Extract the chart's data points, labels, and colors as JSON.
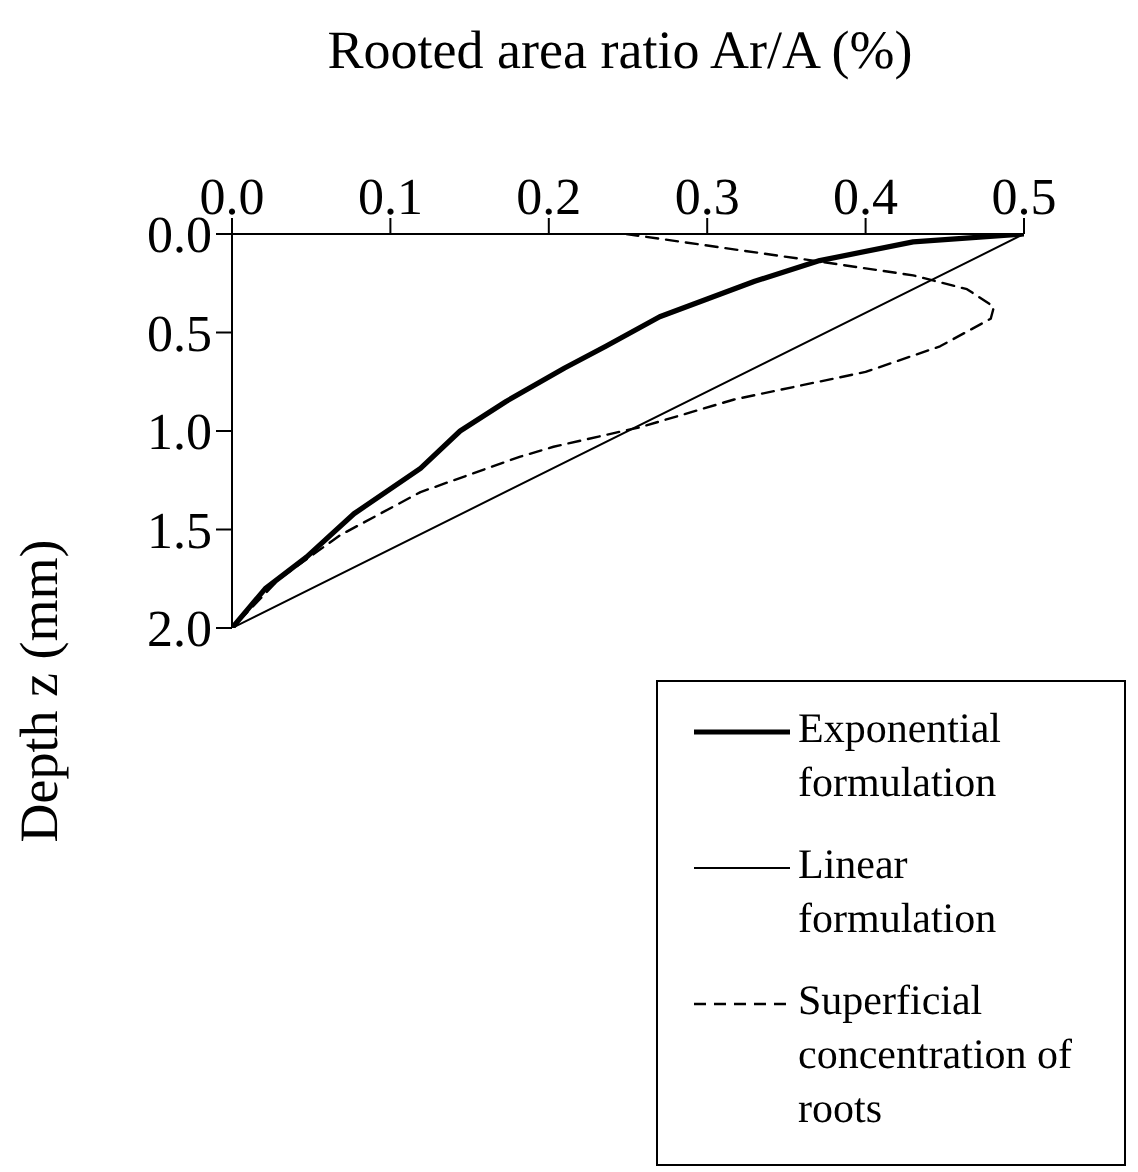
{
  "chart_data": {
    "type": "line",
    "xlabel": "Rooted area ratio Ar/A (%)",
    "ylabel": "Depth z (mm)",
    "xlim": [
      0,
      0.5
    ],
    "xticks": [
      {
        "value": 0,
        "label": "0.0"
      },
      {
        "value": 0.1,
        "label": "0.1"
      },
      {
        "value": 0.2,
        "label": "0.2"
      },
      {
        "value": 0.3,
        "label": "0.3"
      },
      {
        "value": 0.4,
        "label": "0.4"
      },
      {
        "value": 0.5,
        "label": "0.5"
      }
    ],
    "ylim": [
      2,
      0
    ],
    "yticks": [
      {
        "value": 0,
        "label": "0.0"
      },
      {
        "value": 0.5,
        "label": "0.5"
      },
      {
        "value": 1,
        "label": "1.0"
      },
      {
        "value": 1.5,
        "label": "1.5"
      },
      {
        "value": 2,
        "label": "2.0"
      }
    ],
    "grid": false,
    "legend": "bottom right",
    "marker": "none",
    "series": [
      {
        "name": "Exponential formulation",
        "color": "#000000",
        "line_style": "solid",
        "x": [
          0.5,
          0.43,
          0.371,
          0.33,
          0.3,
          0.27,
          0.236,
          0.21,
          0.173,
          0.144,
          0.119,
          0.077,
          0.047,
          0.021,
          0
        ],
        "values": [
          0,
          0.04,
          0.135,
          0.24,
          0.33,
          0.42,
          0.57,
          0.68,
          0.85,
          1.0,
          1.19,
          1.42,
          1.64,
          1.8,
          2.0
        ]
      },
      {
        "name": "Linear formulation",
        "color": "#000000",
        "line_style": "solid",
        "x": [
          0.5,
          0
        ],
        "values": [
          0,
          2.0
        ]
      },
      {
        "name": "Superficial concentration of roots",
        "color": "#000000",
        "line_style": "dashed",
        "x": [
          0.249,
          0.371,
          0.43,
          0.464,
          0.481,
          0.479,
          0.447,
          0.4,
          0.317,
          0.258,
          0.203,
          0.182,
          0.119,
          0.068,
          0.03,
          0
        ],
        "values": [
          0,
          0.14,
          0.21,
          0.28,
          0.37,
          0.43,
          0.57,
          0.7,
          0.84,
          0.98,
          1.08,
          1.13,
          1.31,
          1.53,
          1.75,
          2.0
        ]
      }
    ]
  }
}
